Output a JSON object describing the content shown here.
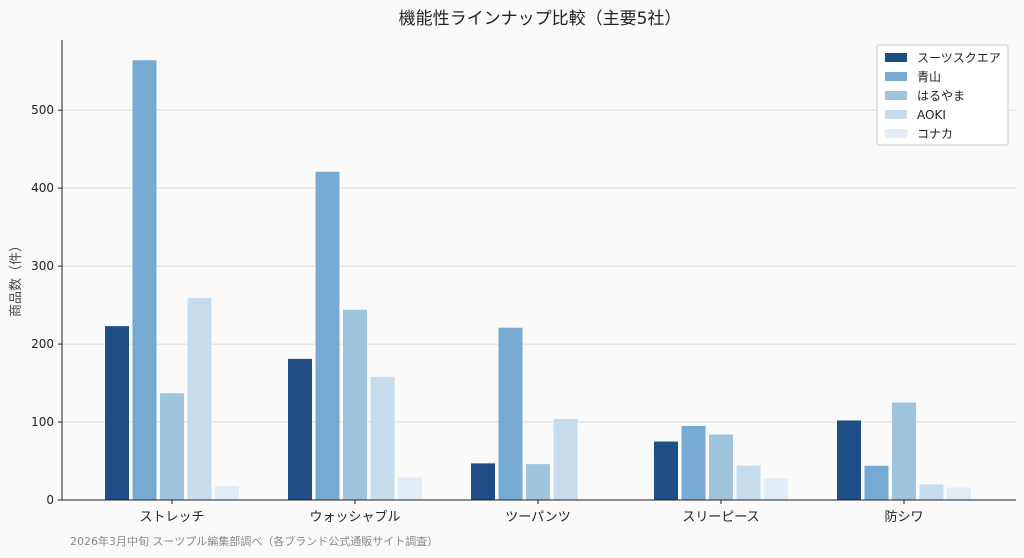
{
  "colors": [
    "#1f4e86",
    "#76aad3",
    "#9fc4de",
    "#c6dcec",
    "#e1ecf6"
  ],
  "chart_data": {
    "type": "bar",
    "title": "機能性ラインナップ比較（主要5社）",
    "xlabel": "",
    "ylabel": "商品数（件）",
    "ylim": [
      0,
      590
    ],
    "yticks": [
      0,
      100,
      200,
      300,
      400,
      500
    ],
    "grid": true,
    "legend": "top-right",
    "categories": [
      "ストレッチ",
      "ウォッシャブル",
      "ツーパンツ",
      "スリーピース",
      "防シワ"
    ],
    "series": [
      {
        "name": "スーツスクエア",
        "values": [
          223,
          181,
          47,
          75,
          102
        ]
      },
      {
        "name": "青山",
        "values": [
          564,
          421,
          221,
          95,
          44
        ]
      },
      {
        "name": "はるやま",
        "values": [
          137,
          244,
          46,
          84,
          125
        ]
      },
      {
        "name": "AOKI",
        "values": [
          259,
          158,
          104,
          44,
          20
        ]
      },
      {
        "name": "コナカ",
        "values": [
          18,
          29,
          0,
          28,
          16
        ]
      }
    ]
  },
  "footnote": "2026年3月中旬 スーツプル編集部調べ（各ブランド公式通販サイト調査）"
}
